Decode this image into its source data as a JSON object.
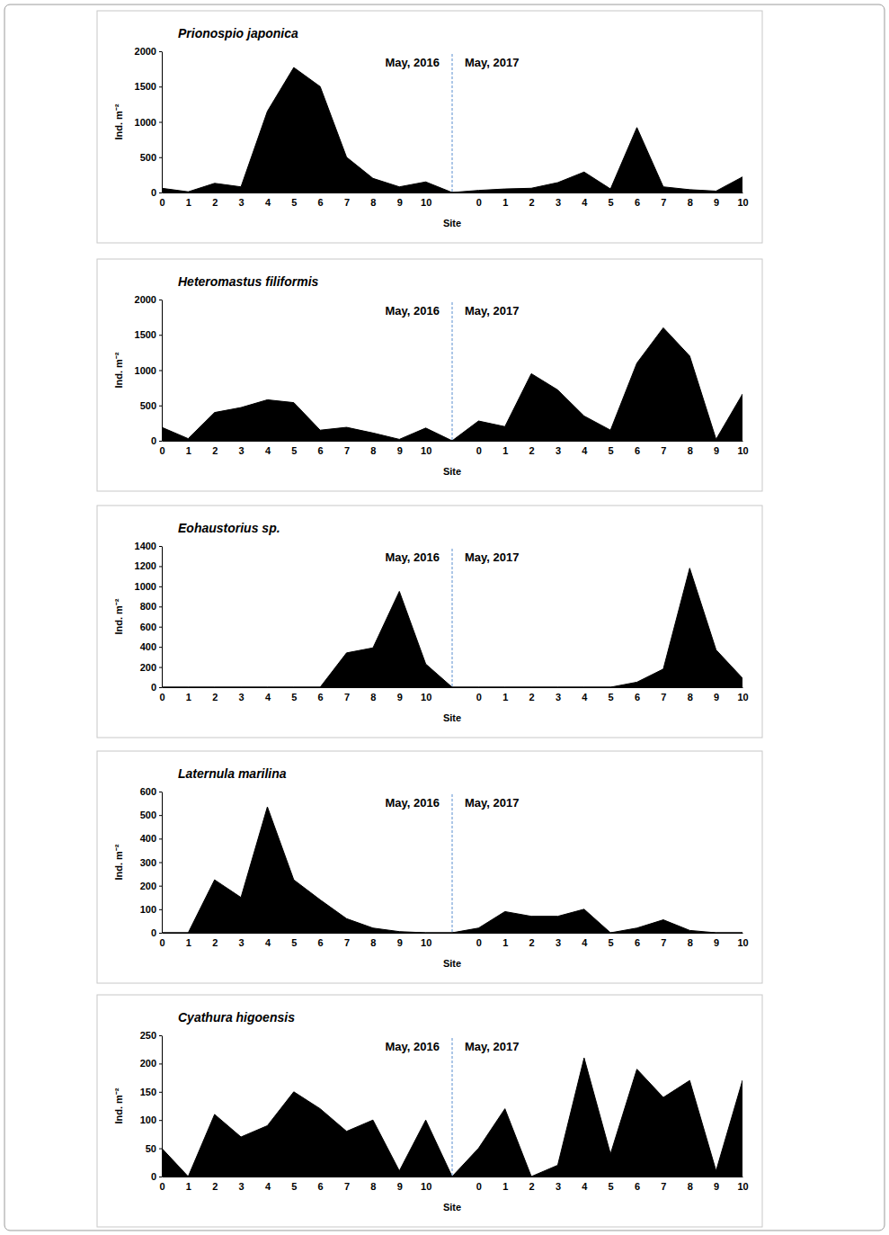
{
  "chart_data": [
    {
      "type": "area",
      "title": "Prionospio japonica",
      "y_label": "Ind. m⁻²",
      "x_label": "Site",
      "annotations": [
        "May, 2016",
        "May, 2017"
      ],
      "categories": [
        "0",
        "1",
        "2",
        "3",
        "4",
        "5",
        "6",
        "7",
        "8",
        "9",
        "10",
        null,
        "0",
        "1",
        "2",
        "3",
        "4",
        "5",
        "6",
        "7",
        "8",
        "9",
        "10"
      ],
      "values": [
        60,
        10,
        130,
        80,
        1150,
        1770,
        1500,
        500,
        200,
        80,
        150,
        0,
        30,
        50,
        60,
        140,
        290,
        50,
        920,
        80,
        40,
        20,
        220
      ],
      "color": "#000000",
      "ylim": [
        0,
        2000
      ],
      "yticks": [
        0,
        500,
        1000,
        1500,
        2000
      ]
    },
    {
      "type": "area",
      "title": "Heteromastus filiformis",
      "y_label": "Ind. m⁻²",
      "x_label": "Site",
      "annotations": [
        "May, 2016",
        "May, 2017"
      ],
      "categories": [
        "0",
        "1",
        "2",
        "3",
        "4",
        "5",
        "6",
        "7",
        "8",
        "9",
        "10",
        null,
        "0",
        "1",
        "2",
        "3",
        "4",
        "5",
        "6",
        "7",
        "8",
        "9",
        "10"
      ],
      "values": [
        190,
        30,
        400,
        470,
        580,
        540,
        150,
        190,
        110,
        20,
        180,
        0,
        280,
        200,
        950,
        720,
        350,
        150,
        1100,
        1600,
        1200,
        20,
        660
      ],
      "color": "#000000",
      "ylim": [
        0,
        2000
      ],
      "yticks": [
        0,
        500,
        1000,
        1500,
        2000
      ]
    },
    {
      "type": "area",
      "title": "Eohaustorius sp.",
      "y_label": "Ind. m⁻²",
      "x_label": "Site",
      "annotations": [
        "May, 2016",
        "May, 2017"
      ],
      "categories": [
        "0",
        "1",
        "2",
        "3",
        "4",
        "5",
        "6",
        "7",
        "8",
        "9",
        "10",
        null,
        "0",
        "1",
        "2",
        "3",
        "4",
        "5",
        "6",
        "7",
        "8",
        "9",
        "10"
      ],
      "values": [
        0,
        0,
        0,
        0,
        0,
        0,
        0,
        340,
        390,
        950,
        230,
        0,
        0,
        0,
        0,
        0,
        0,
        0,
        50,
        180,
        1180,
        370,
        90
      ],
      "color": "#000000",
      "ylim": [
        0,
        1400
      ],
      "yticks": [
        0,
        200,
        400,
        600,
        800,
        1000,
        1200,
        1400
      ]
    },
    {
      "type": "area",
      "title": "Laternula marilina",
      "y_label": "Ind. m⁻²",
      "x_label": "Site",
      "annotations": [
        "May, 2016",
        "May, 2017"
      ],
      "categories": [
        "0",
        "1",
        "2",
        "3",
        "4",
        "5",
        "6",
        "7",
        "8",
        "9",
        "10",
        null,
        "0",
        "1",
        "2",
        "3",
        "4",
        "5",
        "6",
        "7",
        "8",
        "9",
        "10"
      ],
      "values": [
        0,
        0,
        225,
        150,
        535,
        225,
        140,
        60,
        20,
        5,
        0,
        0,
        20,
        90,
        70,
        70,
        100,
        0,
        20,
        55,
        10,
        0,
        0
      ],
      "color": "#000000",
      "ylim": [
        0,
        600
      ],
      "yticks": [
        0,
        100,
        200,
        300,
        400,
        500,
        600
      ]
    },
    {
      "type": "area",
      "title": "Cyathura higoensis",
      "y_label": "Ind. m⁻²",
      "x_label": "Site",
      "annotations": [
        "May, 2016",
        "May, 2017"
      ],
      "categories": [
        "0",
        "1",
        "2",
        "3",
        "4",
        "5",
        "6",
        "7",
        "8",
        "9",
        "10",
        null,
        "0",
        "1",
        "2",
        "3",
        "4",
        "5",
        "6",
        "7",
        "8",
        "9",
        "10"
      ],
      "values": [
        50,
        0,
        110,
        70,
        90,
        150,
        120,
        80,
        100,
        10,
        100,
        0,
        50,
        120,
        0,
        20,
        210,
        40,
        190,
        140,
        170,
        10,
        170
      ],
      "color": "#000000",
      "ylim": [
        0,
        250
      ],
      "yticks": [
        0,
        50,
        100,
        150,
        200,
        250
      ]
    }
  ]
}
